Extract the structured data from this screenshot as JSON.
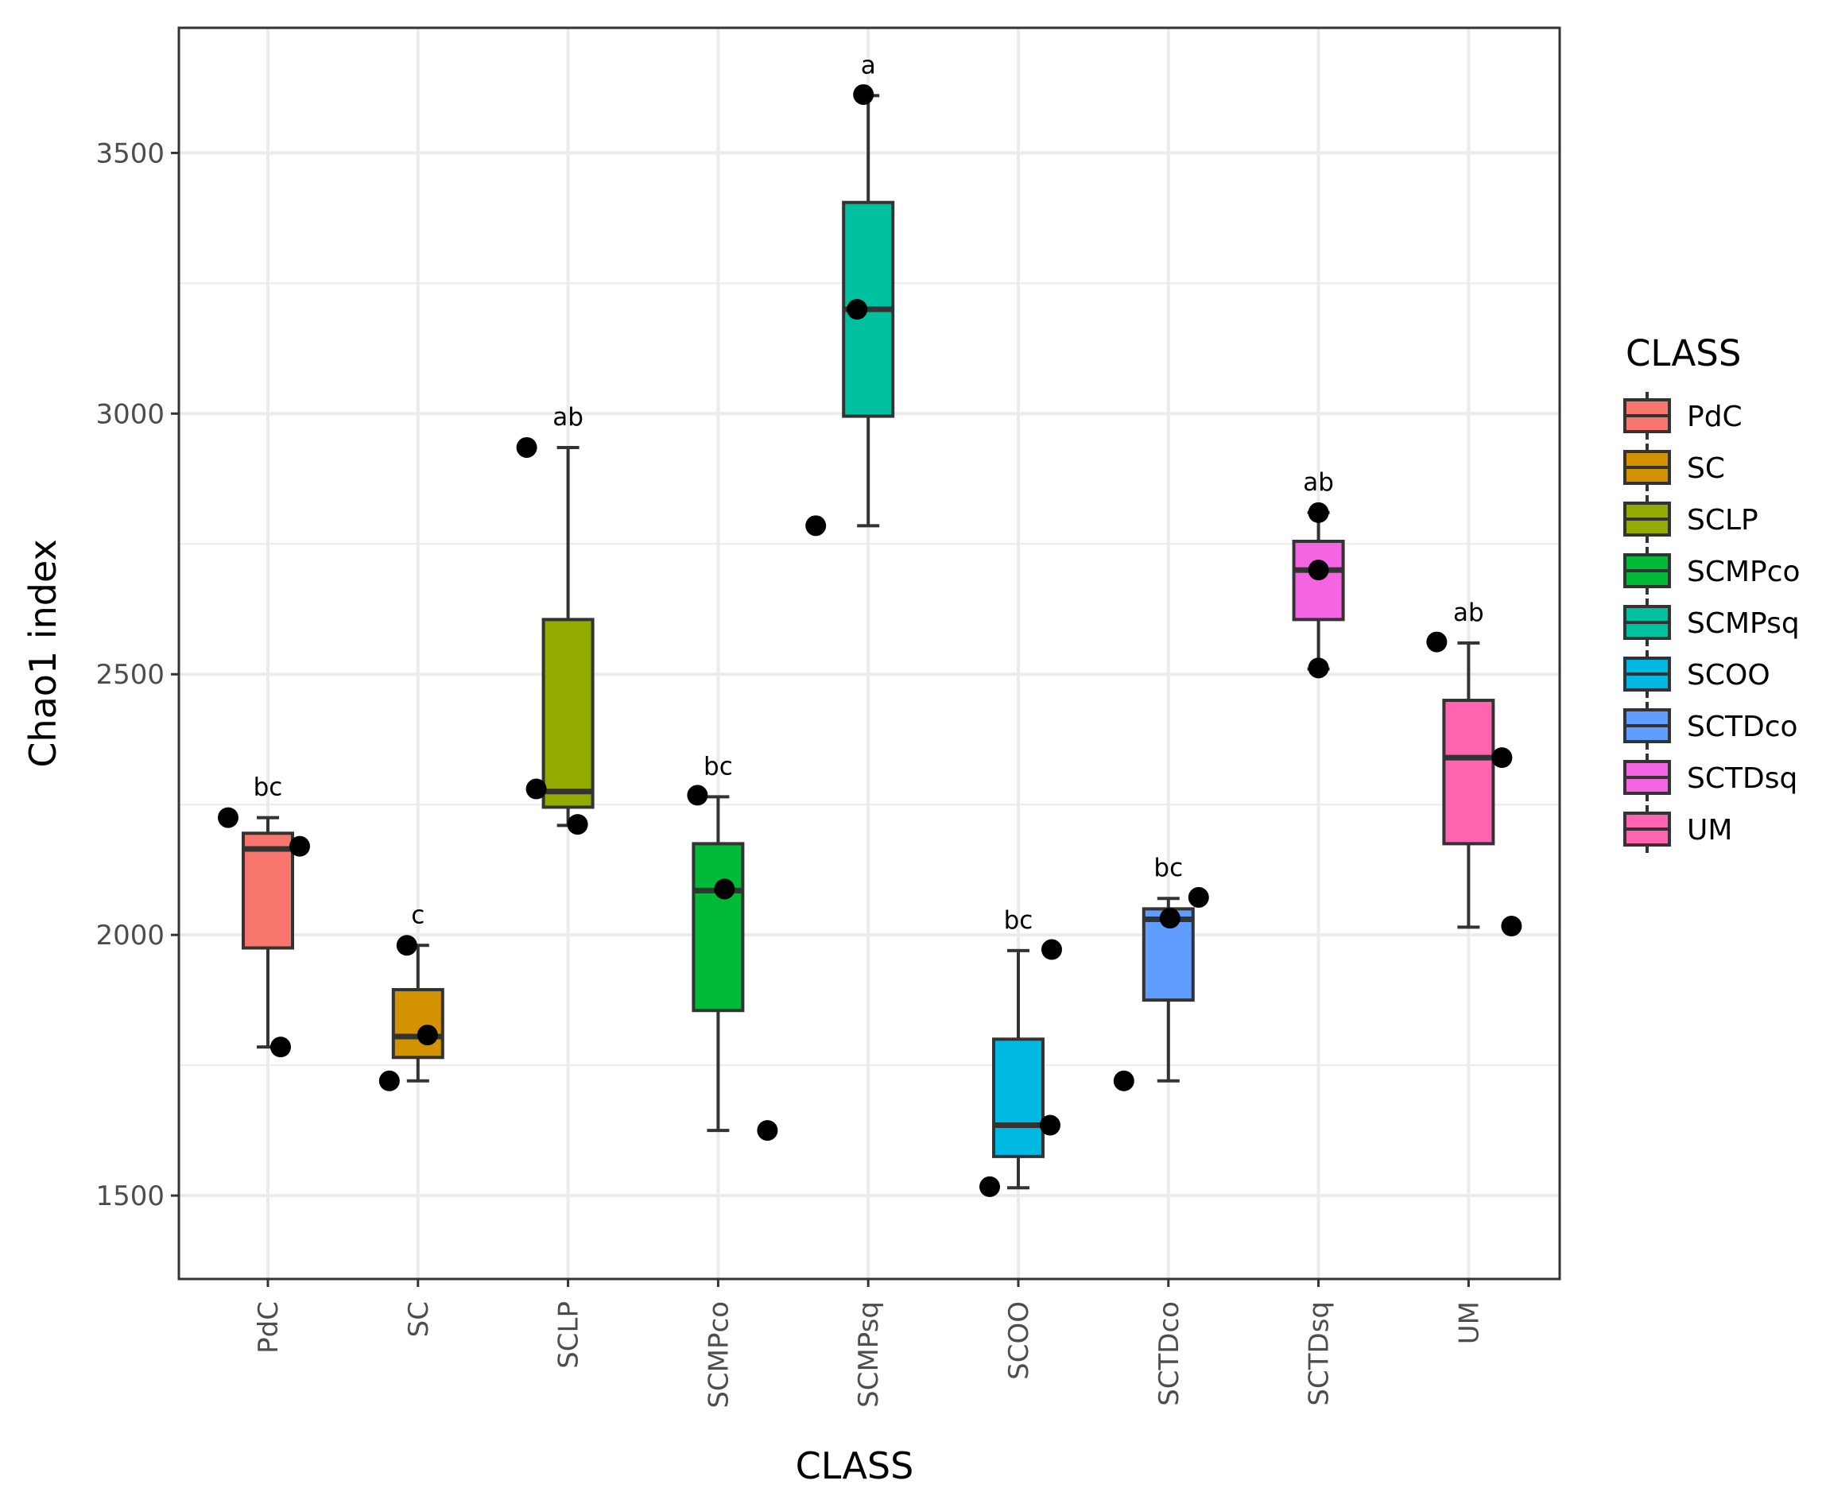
{
  "chart_data": {
    "type": "boxplot",
    "xlabel": "CLASS",
    "ylabel": "Chao1 index",
    "ylim": [
      1340,
      3740
    ],
    "yticks": [
      1500,
      2000,
      2500,
      3000,
      3500
    ],
    "ytick_labels": [
      "1500",
      "2000",
      "2500",
      "3000",
      "3500"
    ],
    "categories": [
      "PdC",
      "SC",
      "SCLP",
      "SCMPco",
      "SCMPsq",
      "SCOO",
      "SCTDco",
      "SCTDsq",
      "UM"
    ],
    "legend": {
      "title": "CLASS",
      "position": "right",
      "entries": [
        "PdC",
        "SC",
        "SCLP",
        "SCMPco",
        "SCMPsq",
        "SCOO",
        "SCTDco",
        "SCTDsq",
        "UM"
      ]
    },
    "series": [
      {
        "name": "PdC",
        "color": "#F8766D",
        "min": 1785,
        "q1": 1975,
        "median": 2165,
        "q3": 2195,
        "max": 2225,
        "points": [
          2225,
          2170,
          1785
        ],
        "letter": "bc"
      },
      {
        "name": "SC",
        "color": "#D39200",
        "min": 1720,
        "q1": 1765,
        "median": 1805,
        "q3": 1895,
        "max": 1980,
        "points": [
          1980,
          1808,
          1720
        ],
        "letter": "c"
      },
      {
        "name": "SCLP",
        "color": "#93AA00",
        "min": 2210,
        "q1": 2245,
        "median": 2275,
        "q3": 2605,
        "max": 2935,
        "points": [
          2935,
          2280,
          2212
        ],
        "letter": "ab"
      },
      {
        "name": "SCMPco",
        "color": "#00BA38",
        "min": 1625,
        "q1": 1855,
        "median": 2085,
        "q3": 2175,
        "max": 2265,
        "points": [
          2268,
          2088,
          1625
        ],
        "letter": "bc"
      },
      {
        "name": "SCMPsq",
        "color": "#00C19F",
        "min": 2785,
        "q1": 2995,
        "median": 3200,
        "q3": 3405,
        "max": 3610,
        "points": [
          3612,
          3200,
          2785
        ],
        "letter": "a"
      },
      {
        "name": "SCOO",
        "color": "#00B9E3",
        "min": 1515,
        "q1": 1575,
        "median": 1635,
        "q3": 1800,
        "max": 1970,
        "points": [
          1972,
          1635,
          1517
        ],
        "letter": "bc"
      },
      {
        "name": "SCTDco",
        "color": "#619CFF",
        "min": 1720,
        "q1": 1875,
        "median": 2030,
        "q3": 2050,
        "max": 2070,
        "points": [
          2072,
          2032,
          1720
        ],
        "letter": "bc"
      },
      {
        "name": "SCTDsq",
        "color": "#F564E3",
        "min": 2510,
        "q1": 2605,
        "median": 2700,
        "q3": 2755,
        "max": 2810,
        "points": [
          2810,
          2700,
          2512
        ],
        "letter": "ab"
      },
      {
        "name": "UM",
        "color": "#FF64B0",
        "min": 2015,
        "q1": 2175,
        "median": 2340,
        "q3": 2450,
        "max": 2560,
        "points": [
          2562,
          2340,
          2017
        ],
        "letter": "ab"
      }
    ]
  }
}
